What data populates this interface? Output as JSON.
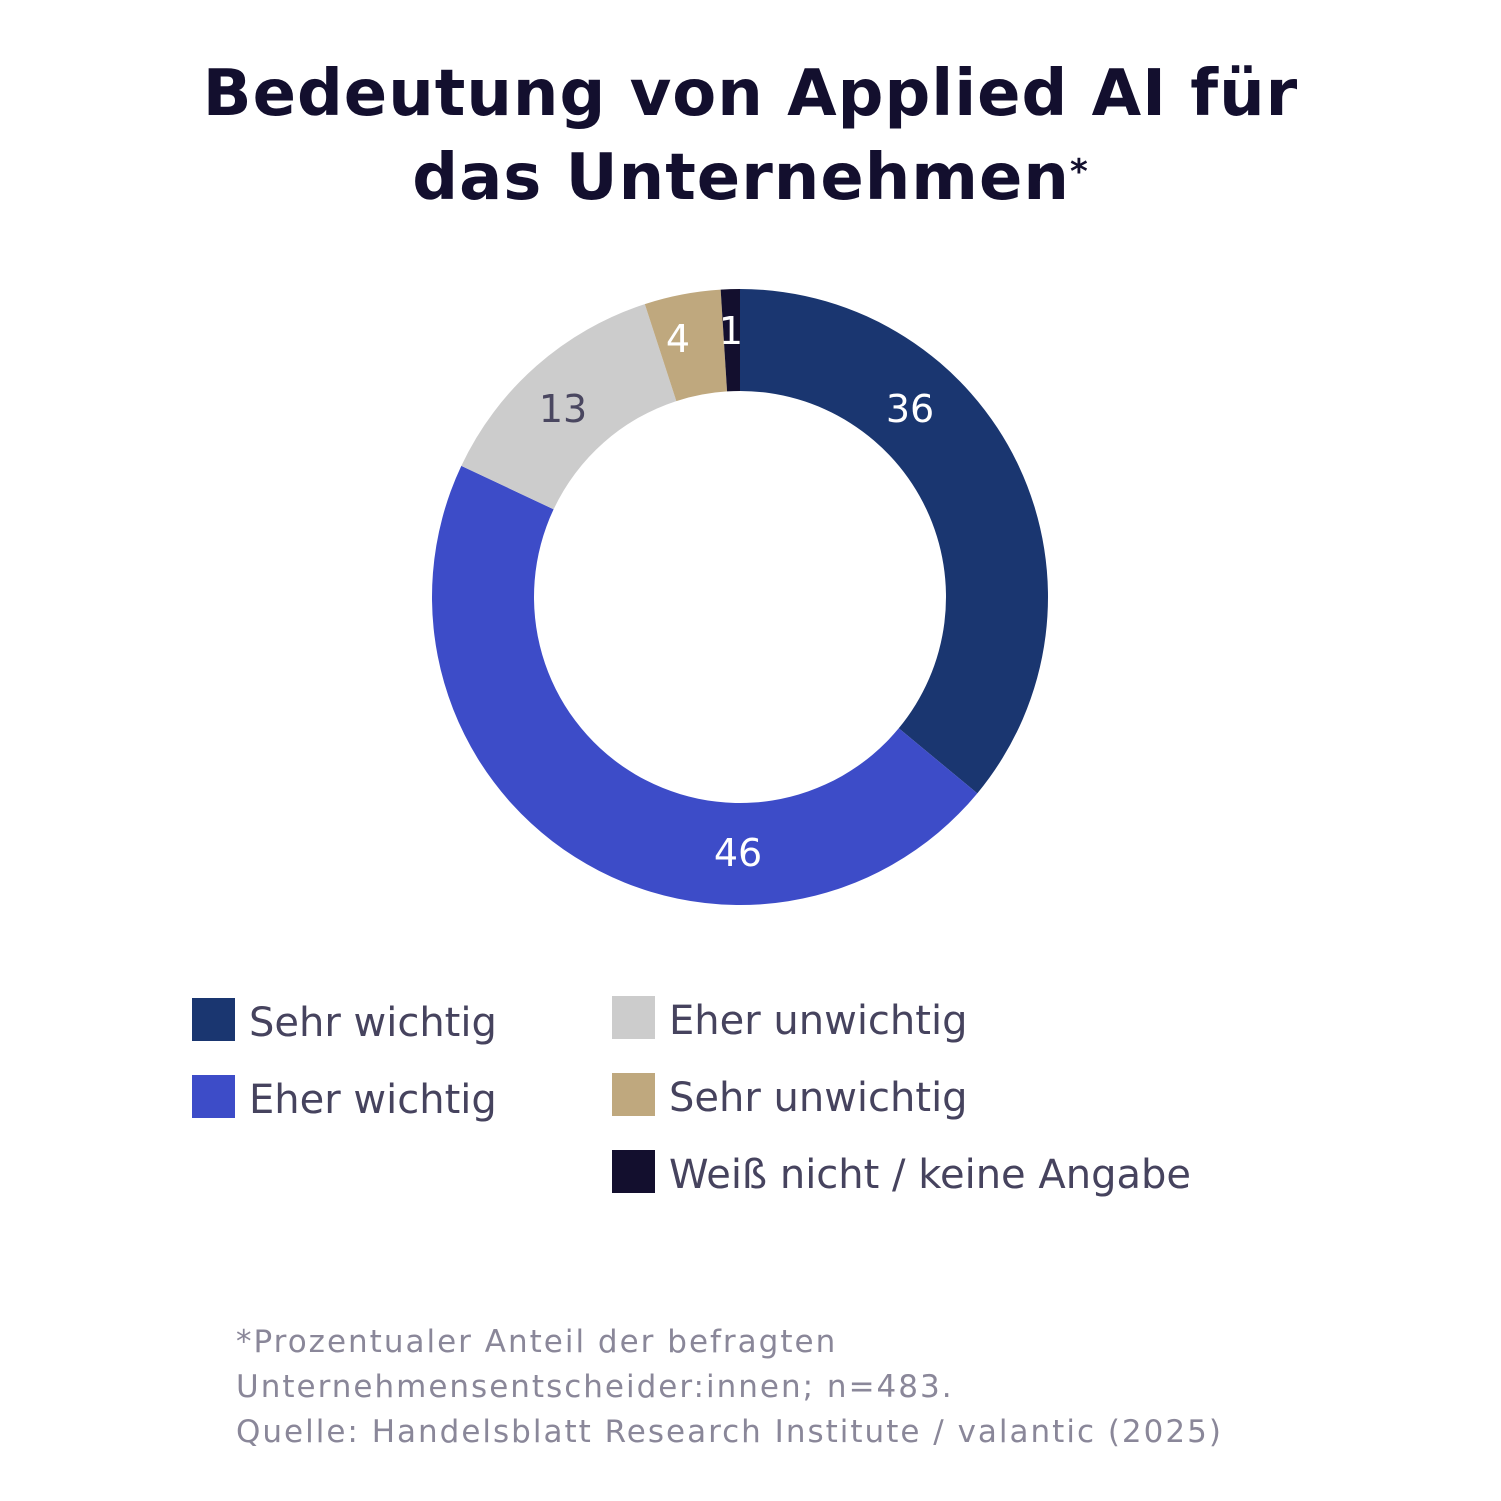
{
  "title_line1": "Bedeutung von Applied AI für",
  "title_line2": "das Unternehmen",
  "title_mark": "*",
  "chart_data": {
    "type": "pie",
    "variant": "donut",
    "start": "top",
    "direction": "clockwise",
    "legend_placement": "bottom",
    "categories": [
      "Sehr wichtig",
      "Eher wichtig",
      "Eher unwichtig",
      "Sehr unwichtig",
      "Weiß nicht / keine Angabe"
    ],
    "values": [
      36,
      46,
      13,
      4,
      1
    ],
    "labels": [
      "36",
      "46",
      "13",
      "4",
      "1"
    ],
    "colors": [
      "#1a3670",
      "#3d4cc8",
      "#cccccc",
      "#bfa87e",
      "#130f2e"
    ],
    "label_colors": [
      "#ffffff",
      "#ffffff",
      "#4a4760",
      "#ffffff",
      "#ffffff"
    ]
  },
  "footnote": [
    "*Prozentualer Anteil der befragten",
    "Unternehmensentscheider:innen; n=483.",
    "Quelle: Handelsblatt Research Institute / valantic (2025)"
  ]
}
